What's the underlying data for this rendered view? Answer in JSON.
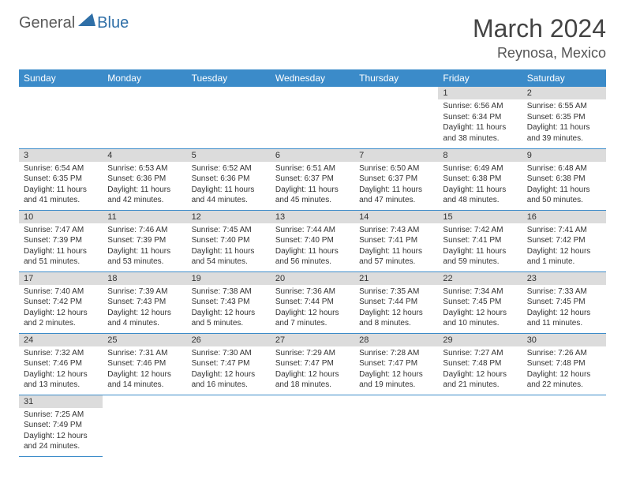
{
  "logo": {
    "general": "General",
    "blue": "Blue"
  },
  "title": "March 2024",
  "location": "Reynosa, Mexico",
  "colors": {
    "header_bg": "#3b8bc9",
    "header_text": "#ffffff",
    "daynum_bg": "#dcdcdc",
    "border": "#3b8bc9",
    "logo_blue": "#2f6fa7"
  },
  "weekdays": [
    "Sunday",
    "Monday",
    "Tuesday",
    "Wednesday",
    "Thursday",
    "Friday",
    "Saturday"
  ],
  "weeks": [
    [
      null,
      null,
      null,
      null,
      null,
      {
        "n": "1",
        "sr": "Sunrise: 6:56 AM",
        "ss": "Sunset: 6:34 PM",
        "dl": "Daylight: 11 hours and 38 minutes."
      },
      {
        "n": "2",
        "sr": "Sunrise: 6:55 AM",
        "ss": "Sunset: 6:35 PM",
        "dl": "Daylight: 11 hours and 39 minutes."
      }
    ],
    [
      {
        "n": "3",
        "sr": "Sunrise: 6:54 AM",
        "ss": "Sunset: 6:35 PM",
        "dl": "Daylight: 11 hours and 41 minutes."
      },
      {
        "n": "4",
        "sr": "Sunrise: 6:53 AM",
        "ss": "Sunset: 6:36 PM",
        "dl": "Daylight: 11 hours and 42 minutes."
      },
      {
        "n": "5",
        "sr": "Sunrise: 6:52 AM",
        "ss": "Sunset: 6:36 PM",
        "dl": "Daylight: 11 hours and 44 minutes."
      },
      {
        "n": "6",
        "sr": "Sunrise: 6:51 AM",
        "ss": "Sunset: 6:37 PM",
        "dl": "Daylight: 11 hours and 45 minutes."
      },
      {
        "n": "7",
        "sr": "Sunrise: 6:50 AM",
        "ss": "Sunset: 6:37 PM",
        "dl": "Daylight: 11 hours and 47 minutes."
      },
      {
        "n": "8",
        "sr": "Sunrise: 6:49 AM",
        "ss": "Sunset: 6:38 PM",
        "dl": "Daylight: 11 hours and 48 minutes."
      },
      {
        "n": "9",
        "sr": "Sunrise: 6:48 AM",
        "ss": "Sunset: 6:38 PM",
        "dl": "Daylight: 11 hours and 50 minutes."
      }
    ],
    [
      {
        "n": "10",
        "sr": "Sunrise: 7:47 AM",
        "ss": "Sunset: 7:39 PM",
        "dl": "Daylight: 11 hours and 51 minutes."
      },
      {
        "n": "11",
        "sr": "Sunrise: 7:46 AM",
        "ss": "Sunset: 7:39 PM",
        "dl": "Daylight: 11 hours and 53 minutes."
      },
      {
        "n": "12",
        "sr": "Sunrise: 7:45 AM",
        "ss": "Sunset: 7:40 PM",
        "dl": "Daylight: 11 hours and 54 minutes."
      },
      {
        "n": "13",
        "sr": "Sunrise: 7:44 AM",
        "ss": "Sunset: 7:40 PM",
        "dl": "Daylight: 11 hours and 56 minutes."
      },
      {
        "n": "14",
        "sr": "Sunrise: 7:43 AM",
        "ss": "Sunset: 7:41 PM",
        "dl": "Daylight: 11 hours and 57 minutes."
      },
      {
        "n": "15",
        "sr": "Sunrise: 7:42 AM",
        "ss": "Sunset: 7:41 PM",
        "dl": "Daylight: 11 hours and 59 minutes."
      },
      {
        "n": "16",
        "sr": "Sunrise: 7:41 AM",
        "ss": "Sunset: 7:42 PM",
        "dl": "Daylight: 12 hours and 1 minute."
      }
    ],
    [
      {
        "n": "17",
        "sr": "Sunrise: 7:40 AM",
        "ss": "Sunset: 7:42 PM",
        "dl": "Daylight: 12 hours and 2 minutes."
      },
      {
        "n": "18",
        "sr": "Sunrise: 7:39 AM",
        "ss": "Sunset: 7:43 PM",
        "dl": "Daylight: 12 hours and 4 minutes."
      },
      {
        "n": "19",
        "sr": "Sunrise: 7:38 AM",
        "ss": "Sunset: 7:43 PM",
        "dl": "Daylight: 12 hours and 5 minutes."
      },
      {
        "n": "20",
        "sr": "Sunrise: 7:36 AM",
        "ss": "Sunset: 7:44 PM",
        "dl": "Daylight: 12 hours and 7 minutes."
      },
      {
        "n": "21",
        "sr": "Sunrise: 7:35 AM",
        "ss": "Sunset: 7:44 PM",
        "dl": "Daylight: 12 hours and 8 minutes."
      },
      {
        "n": "22",
        "sr": "Sunrise: 7:34 AM",
        "ss": "Sunset: 7:45 PM",
        "dl": "Daylight: 12 hours and 10 minutes."
      },
      {
        "n": "23",
        "sr": "Sunrise: 7:33 AM",
        "ss": "Sunset: 7:45 PM",
        "dl": "Daylight: 12 hours and 11 minutes."
      }
    ],
    [
      {
        "n": "24",
        "sr": "Sunrise: 7:32 AM",
        "ss": "Sunset: 7:46 PM",
        "dl": "Daylight: 12 hours and 13 minutes."
      },
      {
        "n": "25",
        "sr": "Sunrise: 7:31 AM",
        "ss": "Sunset: 7:46 PM",
        "dl": "Daylight: 12 hours and 14 minutes."
      },
      {
        "n": "26",
        "sr": "Sunrise: 7:30 AM",
        "ss": "Sunset: 7:47 PM",
        "dl": "Daylight: 12 hours and 16 minutes."
      },
      {
        "n": "27",
        "sr": "Sunrise: 7:29 AM",
        "ss": "Sunset: 7:47 PM",
        "dl": "Daylight: 12 hours and 18 minutes."
      },
      {
        "n": "28",
        "sr": "Sunrise: 7:28 AM",
        "ss": "Sunset: 7:47 PM",
        "dl": "Daylight: 12 hours and 19 minutes."
      },
      {
        "n": "29",
        "sr": "Sunrise: 7:27 AM",
        "ss": "Sunset: 7:48 PM",
        "dl": "Daylight: 12 hours and 21 minutes."
      },
      {
        "n": "30",
        "sr": "Sunrise: 7:26 AM",
        "ss": "Sunset: 7:48 PM",
        "dl": "Daylight: 12 hours and 22 minutes."
      }
    ],
    [
      {
        "n": "31",
        "sr": "Sunrise: 7:25 AM",
        "ss": "Sunset: 7:49 PM",
        "dl": "Daylight: 12 hours and 24 minutes."
      },
      null,
      null,
      null,
      null,
      null,
      null
    ]
  ]
}
